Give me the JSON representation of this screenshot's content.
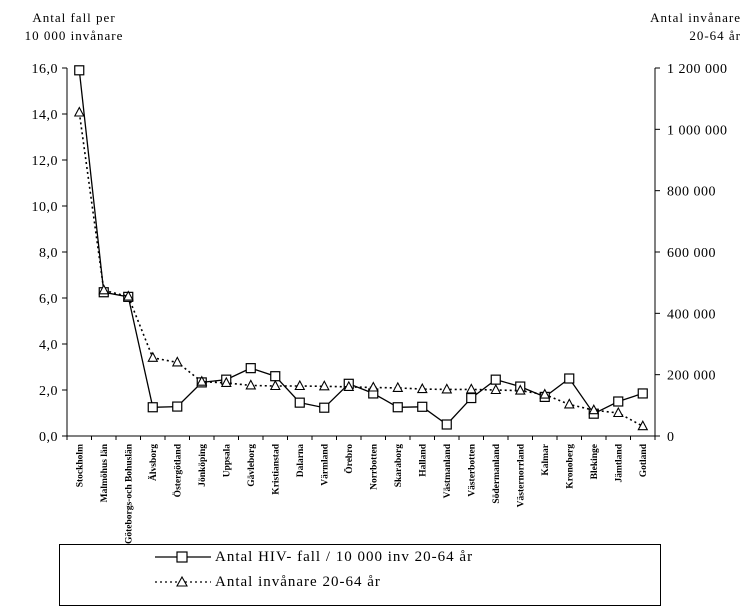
{
  "chart_data": {
    "type": "line",
    "ylabel_left": [
      "Antal fall per",
      "10 000 invånare"
    ],
    "ylabel_right": [
      "Antal invånare",
      "20-64 år"
    ],
    "ylim_left": [
      0,
      16
    ],
    "ylim_right": [
      0,
      1200000
    ],
    "left_ticks": [
      "0,0",
      "2,0",
      "4,0",
      "6,0",
      "8,0",
      "10,0",
      "12,0",
      "14,0",
      "16,0"
    ],
    "right_ticks": [
      "0",
      "200 000",
      "400 000",
      "600 000",
      "800 000",
      "1 000 000",
      "1 200 000"
    ],
    "categories": [
      "Stockholm",
      "Malmöhus län",
      "Göteborgs-och Bohuslän",
      "Älvsborg",
      "Östergötland",
      "Jönköping",
      "Uppsala",
      "Gävleborg",
      "Kristianstad",
      "Dalarna",
      "Värmland",
      "Örebro",
      "Norrbotten",
      "Skaraborg",
      "Halland",
      "Västmanland",
      "Västerbotten",
      "Södermanland",
      "Västernorrland",
      "Kalmar",
      "Kronoberg",
      "Blekinge",
      "Jämtland",
      "Gotland"
    ],
    "series": [
      {
        "name": "Antal HIV- fall / 10 000 inv 20-64 år",
        "axis": "left",
        "marker": "square",
        "line": "solid",
        "values": [
          15.9,
          6.25,
          6.05,
          1.25,
          1.28,
          2.33,
          2.45,
          2.95,
          2.6,
          1.45,
          1.23,
          2.27,
          1.85,
          1.25,
          1.27,
          0.5,
          1.65,
          2.45,
          2.15,
          1.7,
          2.5,
          0.97,
          1.5,
          1.85
        ]
      },
      {
        "name": "Antal invånare 20-64 år",
        "axis": "right",
        "marker": "triangle",
        "line": "dotted",
        "values": [
          1055000,
          475000,
          455000,
          255000,
          240000,
          177000,
          173000,
          165000,
          163000,
          163000,
          162000,
          160000,
          158000,
          157000,
          153000,
          152000,
          152000,
          150000,
          148000,
          135000,
          103000,
          84000,
          75000,
          32000
        ]
      }
    ],
    "legend_position": "bottom"
  }
}
